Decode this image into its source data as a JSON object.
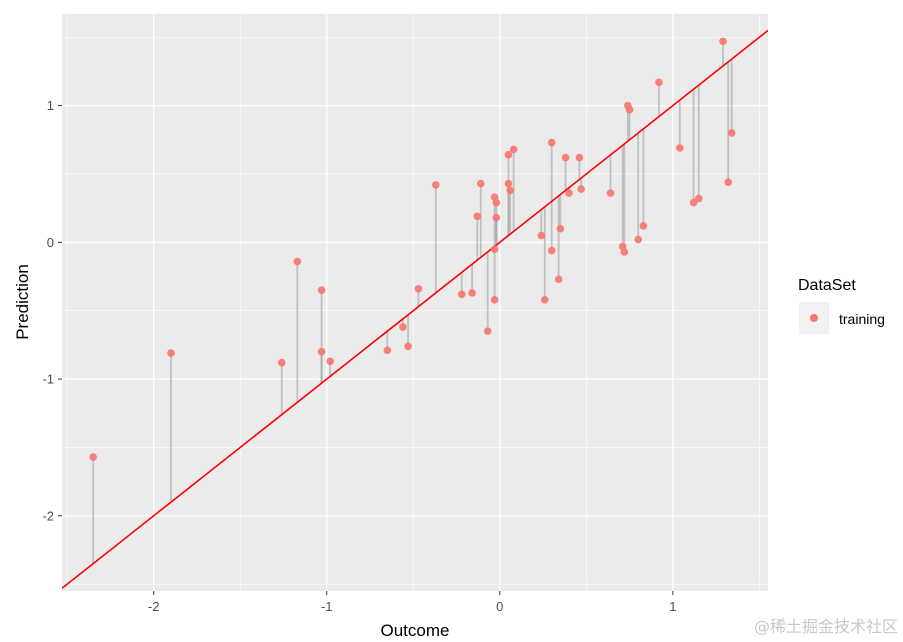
{
  "chart_data": {
    "type": "scatter",
    "xlabel": "Outcome",
    "ylabel": "Prediction",
    "xlim": [
      -2.53,
      1.55
    ],
    "ylim": [
      -2.55,
      1.67
    ],
    "x_ticks": [
      "-2",
      "-1",
      "0",
      "1"
    ],
    "y_ticks": [
      "-2",
      "-1",
      "0",
      "1"
    ],
    "grid": true,
    "reference_line": {
      "slope": 1,
      "intercept": 0,
      "color": "#ff0000"
    },
    "segments_to_reference_line": true,
    "legend": {
      "title": "DataSet",
      "position": "right",
      "entries": [
        "training"
      ]
    },
    "series": [
      {
        "name": "training",
        "color": "#f8766d",
        "points": [
          [
            -2.35,
            -1.57
          ],
          [
            -1.9,
            -0.81
          ],
          [
            -1.26,
            -0.88
          ],
          [
            -1.17,
            -0.14
          ],
          [
            -1.03,
            -0.35
          ],
          [
            -1.03,
            -0.8
          ],
          [
            -0.98,
            -0.87
          ],
          [
            -0.65,
            -0.79
          ],
          [
            -0.56,
            -0.62
          ],
          [
            -0.53,
            -0.76
          ],
          [
            -0.47,
            -0.34
          ],
          [
            -0.37,
            0.42
          ],
          [
            -0.22,
            -0.38
          ],
          [
            -0.16,
            -0.37
          ],
          [
            -0.13,
            0.19
          ],
          [
            -0.11,
            0.43
          ],
          [
            -0.07,
            -0.65
          ],
          [
            -0.03,
            -0.42
          ],
          [
            -0.03,
            -0.05
          ],
          [
            -0.03,
            0.33
          ],
          [
            -0.02,
            0.29
          ],
          [
            -0.02,
            0.18
          ],
          [
            0.05,
            0.64
          ],
          [
            0.05,
            0.43
          ],
          [
            0.06,
            0.38
          ],
          [
            0.08,
            0.68
          ],
          [
            0.24,
            0.05
          ],
          [
            0.26,
            -0.42
          ],
          [
            0.3,
            0.73
          ],
          [
            0.3,
            -0.06
          ],
          [
            0.34,
            -0.27
          ],
          [
            0.35,
            0.1
          ],
          [
            0.38,
            0.62
          ],
          [
            0.4,
            0.36
          ],
          [
            0.46,
            0.62
          ],
          [
            0.47,
            0.39
          ],
          [
            0.64,
            0.36
          ],
          [
            0.71,
            -0.03
          ],
          [
            0.72,
            -0.07
          ],
          [
            0.74,
            1.0
          ],
          [
            0.75,
            0.97
          ],
          [
            0.8,
            0.02
          ],
          [
            0.83,
            0.12
          ],
          [
            0.92,
            1.17
          ],
          [
            1.04,
            0.69
          ],
          [
            1.12,
            0.29
          ],
          [
            1.15,
            0.32
          ],
          [
            1.29,
            1.47
          ],
          [
            1.32,
            0.44
          ],
          [
            1.34,
            0.8
          ]
        ]
      }
    ]
  },
  "watermark": "@稀土掘金技术社区"
}
